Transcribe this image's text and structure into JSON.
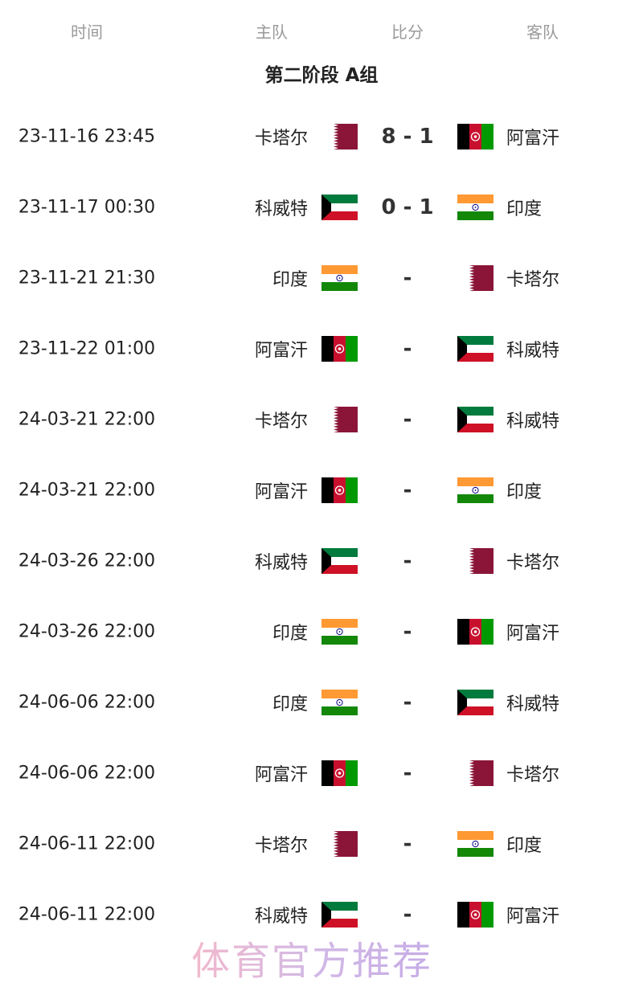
{
  "headers": {
    "time": "时间",
    "home": "主队",
    "score": "比分",
    "away": "客队"
  },
  "group_title": "第二阶段 A组",
  "flags": {
    "qatar": "qatar-flag",
    "afghanistan": "afghanistan-flag",
    "kuwait": "kuwait-flag",
    "india": "india-flag"
  },
  "matches": [
    {
      "time": "23-11-16 23:45",
      "home": "卡塔尔",
      "home_flag": "qatar",
      "score": "8 - 1",
      "away": "阿富汗",
      "away_flag": "afghanistan"
    },
    {
      "time": "23-11-17 00:30",
      "home": "科威特",
      "home_flag": "kuwait",
      "score": "0 - 1",
      "away": "印度",
      "away_flag": "india"
    },
    {
      "time": "23-11-21 21:30",
      "home": "印度",
      "home_flag": "india",
      "score": "-",
      "away": "卡塔尔",
      "away_flag": "qatar"
    },
    {
      "time": "23-11-22 01:00",
      "home": "阿富汗",
      "home_flag": "afghanistan",
      "score": "-",
      "away": "科威特",
      "away_flag": "kuwait"
    },
    {
      "time": "24-03-21 22:00",
      "home": "卡塔尔",
      "home_flag": "qatar",
      "score": "-",
      "away": "科威特",
      "away_flag": "kuwait"
    },
    {
      "time": "24-03-21 22:00",
      "home": "阿富汗",
      "home_flag": "afghanistan",
      "score": "-",
      "away": "印度",
      "away_flag": "india"
    },
    {
      "time": "24-03-26 22:00",
      "home": "科威特",
      "home_flag": "kuwait",
      "score": "-",
      "away": "卡塔尔",
      "away_flag": "qatar"
    },
    {
      "time": "24-03-26 22:00",
      "home": "印度",
      "home_flag": "india",
      "score": "-",
      "away": "阿富汗",
      "away_flag": "afghanistan"
    },
    {
      "time": "24-06-06 22:00",
      "home": "印度",
      "home_flag": "india",
      "score": "-",
      "away": "科威特",
      "away_flag": "kuwait"
    },
    {
      "time": "24-06-06 22:00",
      "home": "阿富汗",
      "home_flag": "afghanistan",
      "score": "-",
      "away": "卡塔尔",
      "away_flag": "qatar"
    },
    {
      "time": "24-06-11 22:00",
      "home": "卡塔尔",
      "home_flag": "qatar",
      "score": "-",
      "away": "印度",
      "away_flag": "india"
    },
    {
      "time": "24-06-11 22:00",
      "home": "科威特",
      "home_flag": "kuwait",
      "score": "-",
      "away": "阿富汗",
      "away_flag": "afghanistan"
    }
  ],
  "watermark": "体育官方推荐"
}
